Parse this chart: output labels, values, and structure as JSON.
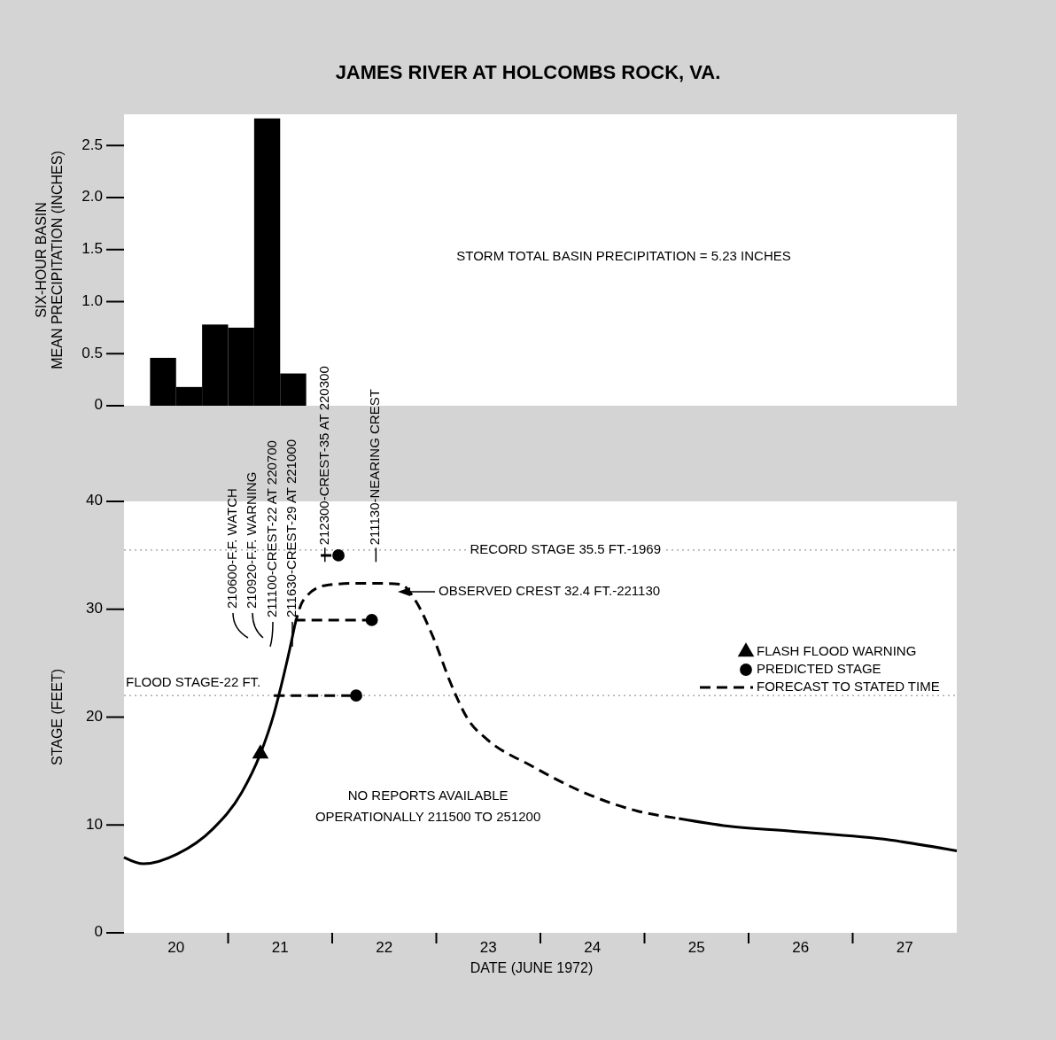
{
  "chart_data": [
    {
      "type": "histogram",
      "title": "JAMES RIVER AT HOLCOMBS ROCK, VA.",
      "ylabel": "SIX-HOUR BASIN\nMEAN PRECIPITATION (INCHES)",
      "bins": [
        20.25,
        20.5,
        20.75,
        21,
        21.25,
        21.5,
        21.75
      ],
      "values": [
        0.46,
        0.18,
        0.78,
        0.75,
        2.76,
        0.31
      ],
      "color": "#000000",
      "xlim": [
        20,
        28
      ],
      "ylim": [
        0,
        2.8
      ],
      "yticks": [
        0,
        0.5,
        {
          "value": 1,
          "label": "1.0"
        },
        1.5,
        {
          "value": 2,
          "label": "2.0"
        },
        2.5
      ],
      "tick_labels": "y",
      "annotations": [
        "STORM TOTAL BASIN PRECIPITATION = 5.23 INCHES"
      ]
    },
    {
      "type": "line",
      "xlabel": "DATE (JUNE 1972)",
      "ylabel": "STAGE (FEET)",
      "xlim": [
        20,
        28
      ],
      "ylim": [
        0,
        40
      ],
      "yticks": [
        0,
        10,
        20,
        30,
        40
      ],
      "xticks": [
        {
          "value": 20.5,
          "label": "20"
        },
        {
          "value": 21,
          "label": null
        },
        {
          "value": 21.5,
          "label": "21"
        },
        {
          "value": 22,
          "label": null
        },
        {
          "value": 22.5,
          "label": "22"
        },
        {
          "value": 23,
          "label": null
        },
        {
          "value": 23.5,
          "label": "23"
        },
        {
          "value": 24,
          "label": null
        },
        {
          "value": 24.5,
          "label": "24"
        },
        {
          "value": 25,
          "label": null
        },
        {
          "value": 25.5,
          "label": "25"
        },
        {
          "value": 26,
          "label": null
        },
        {
          "value": 26.5,
          "label": "26"
        },
        {
          "value": 27,
          "label": null
        },
        {
          "value": 27.5,
          "label": "27"
        }
      ],
      "legend": "right",
      "series": [
        {
          "name": "FLASH FLOOD WARNING",
          "type": "scatter",
          "marker": "triangle",
          "color": "#000000",
          "x": [
            21.31
          ],
          "values": [
            16.6
          ]
        },
        {
          "name": "PREDICTED STAGE",
          "type": "scatter",
          "marker": "circle",
          "color": "#000000",
          "x": [
            22.23,
            22.38,
            22.06
          ],
          "values": [
            22,
            29,
            35
          ]
        },
        {
          "name": "FORECAST TO STATED TIME",
          "type": "line",
          "line_style": "dashed",
          "color": "#000000",
          "x": [
            21.44,
            22.23
          ],
          "values": [
            22,
            22
          ]
        },
        {
          "type": "line",
          "line_style": "dashed",
          "color": "#000000",
          "x": [
            21.64,
            22.38
          ],
          "values": [
            29,
            29
          ]
        },
        {
          "type": "line",
          "line_style": "dashed",
          "color": "#000000",
          "x": [
            21.89,
            22.06
          ],
          "values": [
            35,
            35
          ]
        },
        {
          "type": "line",
          "line_style": "solid",
          "color": "#000000",
          "x": [
            20.0,
            20.19,
            20.51,
            20.85,
            21.13,
            21.31,
            21.44,
            21.53,
            21.61,
            21.64
          ],
          "values": [
            7.0,
            6.4,
            7.3,
            9.6,
            13.0,
            16.6,
            20.3,
            23.7,
            27.1,
            28.5
          ]
        },
        {
          "type": "line",
          "line_style": "dashed",
          "color": "#000000",
          "x": [
            21.64,
            21.72,
            21.93,
            22.2,
            22.5,
            22.66,
            22.8,
            22.97,
            23.14,
            23.31,
            23.48,
            23.91,
            24.42,
            24.93,
            25.33
          ],
          "values": [
            28.5,
            30.8,
            32.2,
            32.4,
            32.4,
            32.3,
            30.8,
            27.4,
            23.1,
            19.7,
            18.0,
            15.5,
            13.0,
            11.3,
            10.6
          ]
        },
        {
          "type": "line",
          "line_style": "solid",
          "color": "#000000",
          "x": [
            25.33,
            25.8,
            26.43,
            27.36,
            28.0
          ],
          "values": [
            10.6,
            9.9,
            9.4,
            8.6,
            7.6
          ]
        }
      ],
      "ref_lines": [
        {
          "axis": "y",
          "value": 22,
          "label": "FLOOD STAGE-22 FT.",
          "line_style": "dotted",
          "color": "#999999"
        },
        {
          "axis": "y",
          "value": 35.5,
          "label": "RECORD STAGE 35.5 FT.-1969",
          "line_style": "dotted",
          "color": "#999999"
        }
      ],
      "annotations": [
        "210600-F.F. WATCH",
        "210920-F.F. WARNING",
        "211100-CREST-22 AT 220700",
        "211630-CREST-29 AT 221000",
        "OBSERVED CREST 32.4 FT.-221130",
        {
          "text": "212300-CREST-35 AT 220300",
          "x": 21.93,
          "y": 35.7
        },
        {
          "text": "211130-NEARING CREST",
          "x": 22.42,
          "y": 35.7
        },
        "NO REPORTS AVAILABLE",
        "OPERATIONALLY 211500 TO 251200"
      ]
    }
  ]
}
